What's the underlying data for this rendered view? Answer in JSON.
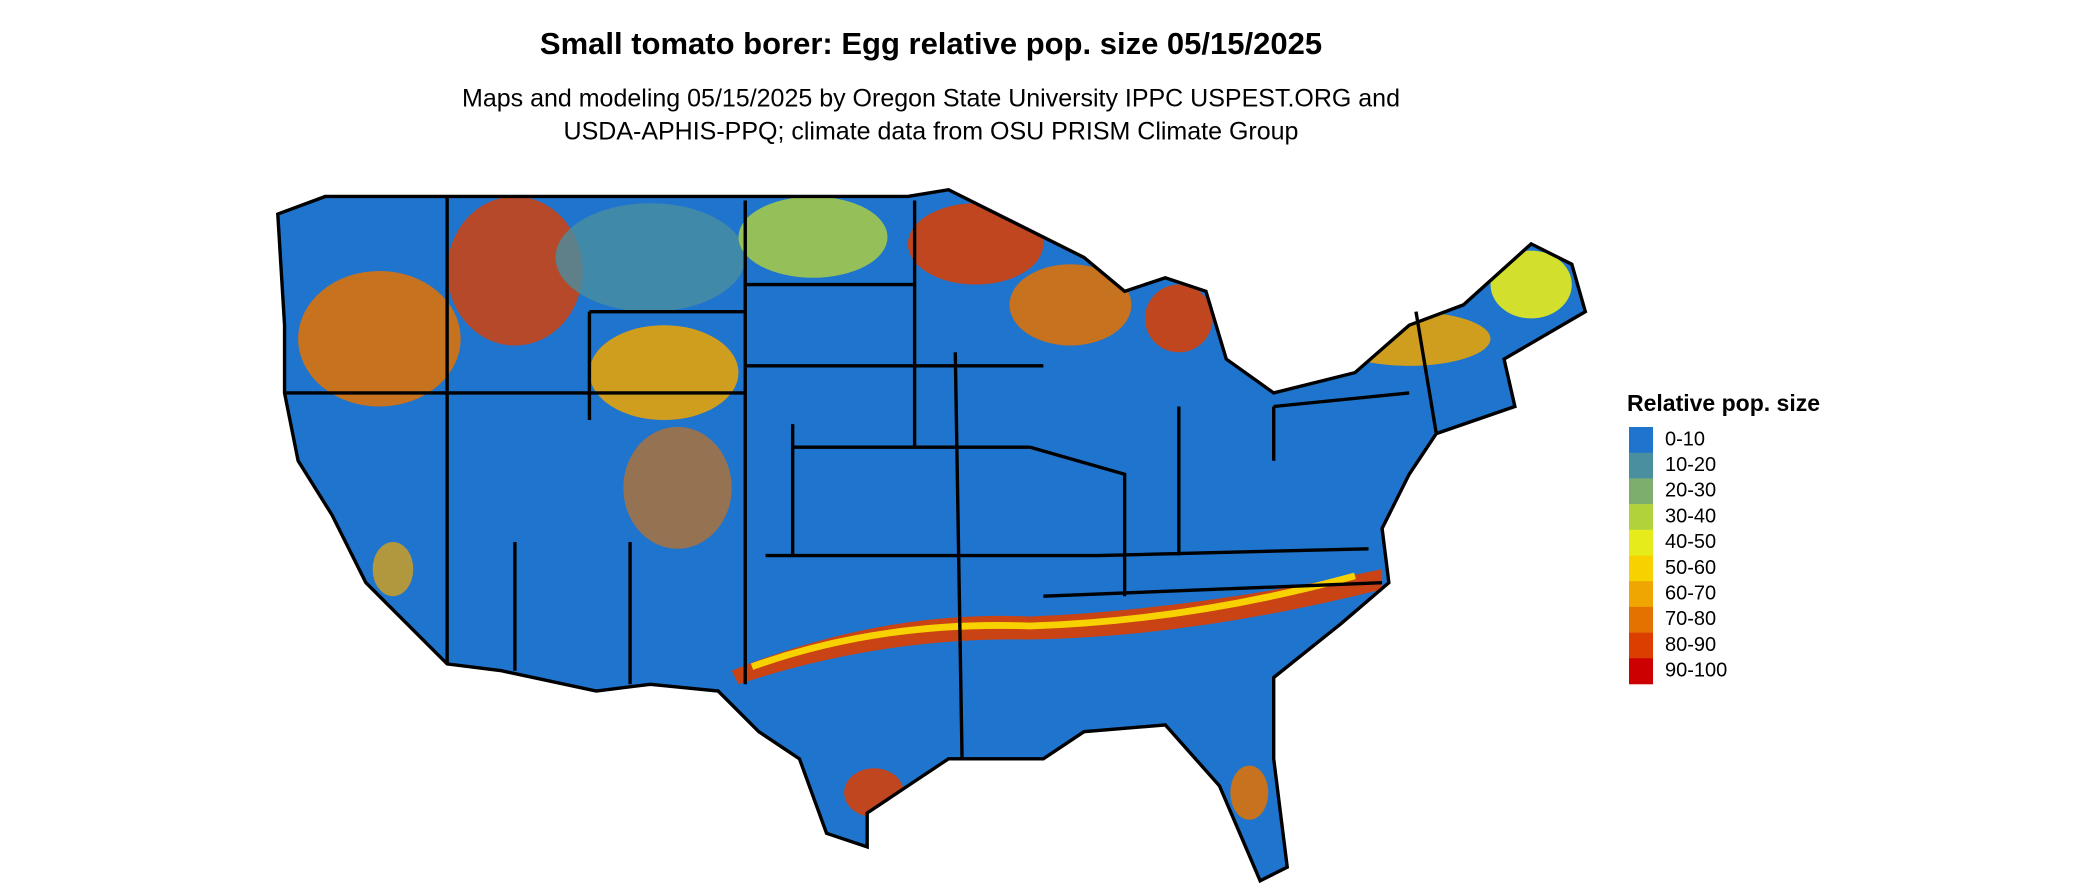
{
  "header": {
    "title": "Small tomato borer: Egg relative pop. size 05/15/2025",
    "subtitle_lines": [
      "Maps and modeling 05/15/2025 by Oregon State University IPPC USPEST.ORG and",
      "USDA-APHIS-PPQ; climate data from OSU PRISM Climate Group"
    ]
  },
  "legend": {
    "title": "Relative pop. size",
    "items": [
      {
        "label": "0-10",
        "color": "#1f74cd"
      },
      {
        "label": "10-20",
        "color": "#4a8fa0"
      },
      {
        "label": "20-30",
        "color": "#7dae6e"
      },
      {
        "label": "30-40",
        "color": "#b2d23c"
      },
      {
        "label": "40-50",
        "color": "#e6ec1c"
      },
      {
        "label": "50-60",
        "color": "#f8d200"
      },
      {
        "label": "60-70",
        "color": "#f0a600"
      },
      {
        "label": "70-80",
        "color": "#e47200"
      },
      {
        "label": "80-90",
        "color": "#dc3e00"
      },
      {
        "label": "90-100",
        "color": "#cc0000"
      }
    ]
  }
}
